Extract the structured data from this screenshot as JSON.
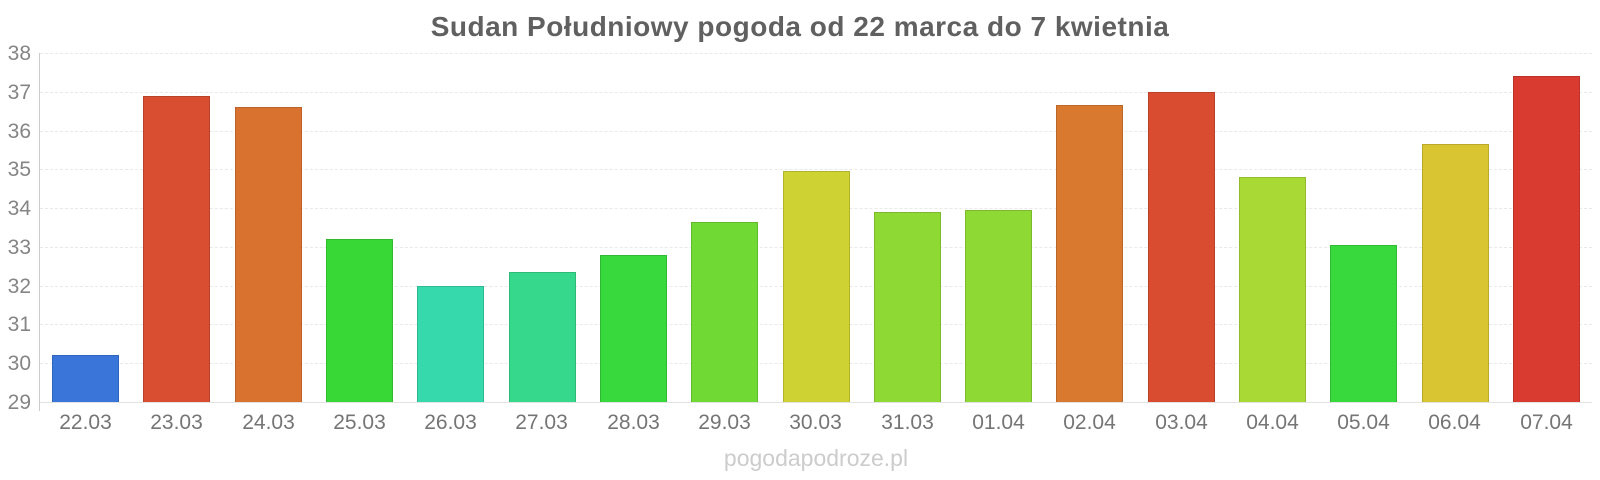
{
  "title": "Sudan Południowy pogoda od 22 marca do 7 kwietnia",
  "watermark": "pogodapodroze.pl",
  "chart_data": {
    "type": "bar",
    "title": "Sudan Południowy pogoda od 22 marca do 7 kwietnia",
    "categories": [
      "22.03",
      "23.03",
      "24.03",
      "25.03",
      "26.03",
      "27.03",
      "28.03",
      "29.03",
      "30.03",
      "31.03",
      "01.04",
      "02.04",
      "03.04",
      "04.04",
      "05.04",
      "06.04",
      "07.04"
    ],
    "values": [
      30.2,
      36.9,
      36.6,
      33.2,
      32.0,
      32.35,
      32.8,
      33.65,
      34.95,
      33.9,
      33.95,
      36.65,
      37.0,
      34.8,
      33.05,
      35.65,
      37.4
    ],
    "bar_colors": [
      "#3a75da",
      "#d94d31",
      "#d9712f",
      "#38d936",
      "#35d9ac",
      "#36d98c",
      "#38d93c",
      "#70d934",
      "#ced233",
      "#8ed934",
      "#8ed934",
      "#d9782f",
      "#d94c30",
      "#a9d934",
      "#38d93c",
      "#d9c531",
      "#d93b31"
    ],
    "xlabel": "",
    "ylabel": "",
    "ylim": [
      29,
      38
    ],
    "yticks": [
      29,
      30,
      31,
      32,
      33,
      34,
      35,
      36,
      37,
      38
    ],
    "grid": true,
    "legend": false
  },
  "colors": {
    "title_text": "#606060",
    "y_label_text": "#858585",
    "x_label_text": "#757575",
    "gridline": "#e9e9e9",
    "axis_line": "#cccccc",
    "watermark_text": "#cccccc",
    "background": "#ffffff"
  }
}
